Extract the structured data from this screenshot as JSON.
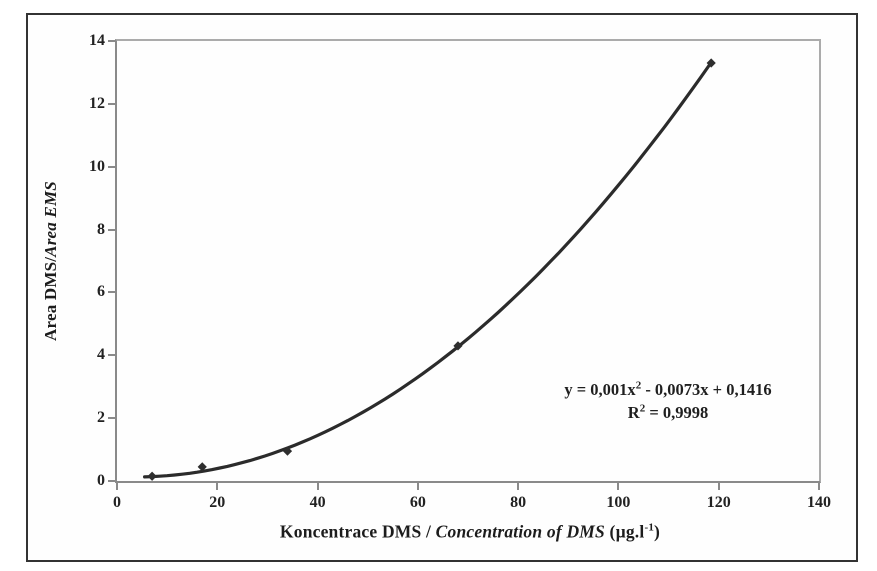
{
  "figure": {
    "background": "#ffffff",
    "border_color": "#333333"
  },
  "chart_data": {
    "type": "scatter",
    "xlim": [
      0,
      140
    ],
    "ylim": [
      0,
      14
    ],
    "x_ticks": [
      0,
      20,
      40,
      60,
      80,
      100,
      120,
      140
    ],
    "y_ticks": [
      0,
      2,
      4,
      6,
      8,
      10,
      12,
      14
    ],
    "grid": false,
    "legend": "none",
    "series": [
      {
        "x": [
          7,
          17,
          34,
          68,
          118.5
        ],
        "y": [
          0.15,
          0.45,
          0.95,
          4.3,
          13.3
        ],
        "marker": "diamond"
      }
    ],
    "trendline": {
      "type": "polynomial",
      "degree": 2,
      "coefficients": {
        "a": 0.001,
        "b": -0.0073,
        "c": 0.1416
      },
      "x_start": 5.5,
      "x_end": 118.5
    },
    "xlabel": {
      "czech": "Koncentrace DMS",
      "separator": " / ",
      "english": "Concentration of DMS",
      "unit_prefix": " (µg.l",
      "unit_sup": "-1",
      "unit_suffix": ")"
    },
    "ylabel": {
      "czech": "Area DMS/",
      "english": "Area EMS"
    },
    "annotation": {
      "eq_prefix": "y = 0,001x",
      "eq_sup": "2",
      "eq_suffix": " - 0,0073x + 0,1416",
      "r2_prefix": "R",
      "r2_sup": "2",
      "r2_suffix": " = 0,9998"
    },
    "colors": {
      "curve": "#2b2b2b",
      "marker": "#2e2e2e",
      "axis": "#8a8a8a",
      "frame": "#ababab",
      "text": "#1c1c1c"
    }
  }
}
